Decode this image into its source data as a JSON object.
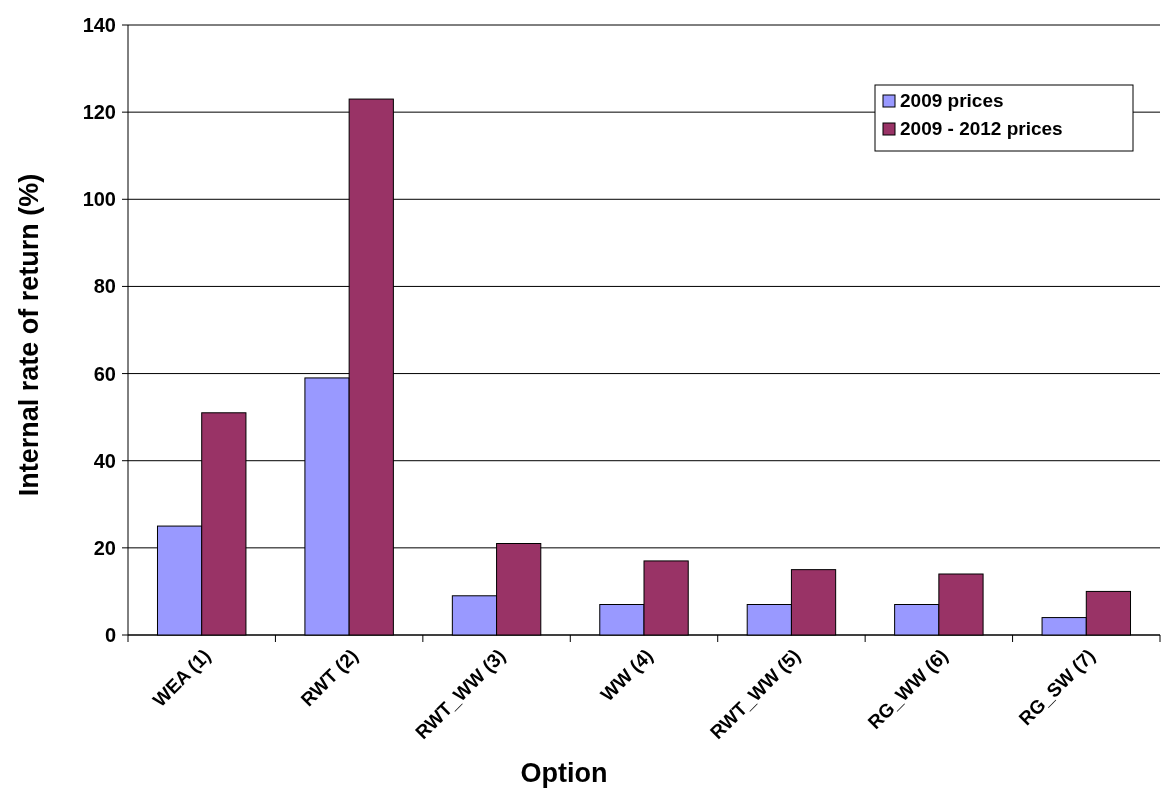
{
  "chart_data": {
    "type": "bar",
    "xlabel": "Option",
    "ylabel": "Internal rate of return (%)",
    "categories": [
      "WEA (1)",
      "RWT (2)",
      "RWT_WW (3)",
      "WW (4)",
      "RWT_WW (5)",
      "RG_WW (6)",
      "RG_SW (7)"
    ],
    "series": [
      {
        "name": "2009 prices",
        "color": "#9999ff",
        "values": [
          25,
          59,
          9,
          7,
          7,
          7,
          4
        ]
      },
      {
        "name": "2009 - 2012 prices",
        "color": "#993366",
        "values": [
          51,
          123,
          21,
          17,
          15,
          14,
          10
        ]
      }
    ],
    "ylim": [
      0,
      140
    ],
    "yticks": [
      0,
      20,
      40,
      60,
      80,
      100,
      120,
      140
    ],
    "grid": "y",
    "legend": "top right"
  }
}
